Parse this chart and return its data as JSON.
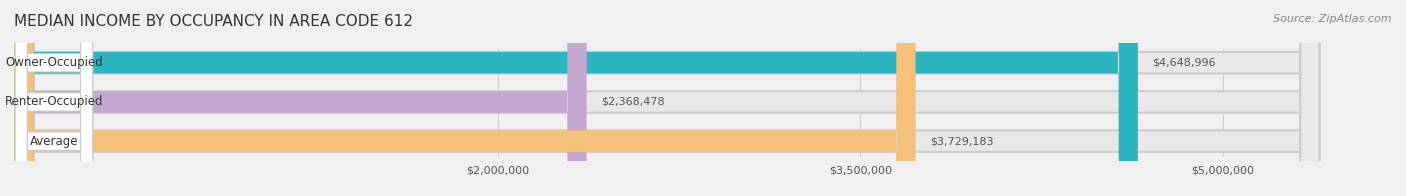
{
  "title": "MEDIAN INCOME BY OCCUPANCY IN AREA CODE 612",
  "source": "Source: ZipAtlas.com",
  "categories": [
    "Owner-Occupied",
    "Renter-Occupied",
    "Average"
  ],
  "values": [
    4648996,
    2368478,
    3729183
  ],
  "bar_colors": [
    "#2ab5c1",
    "#c4a8d0",
    "#f5c07a"
  ],
  "label_colors": [
    "#2ab5c1",
    "#c4a8d0",
    "#f5c07a"
  ],
  "value_labels": [
    "$4,648,996",
    "$2,368,478",
    "$3,729,183"
  ],
  "xmin": 0,
  "xmax": 5400000,
  "xticks": [
    2000000,
    3500000,
    5000000
  ],
  "xtick_labels": [
    "$2,000,000",
    "$3,500,000",
    "$5,000,000"
  ],
  "background_color": "#f0f0f0",
  "bar_background_color": "#e8e8e8",
  "title_fontsize": 11,
  "source_fontsize": 8,
  "bar_height": 0.55
}
